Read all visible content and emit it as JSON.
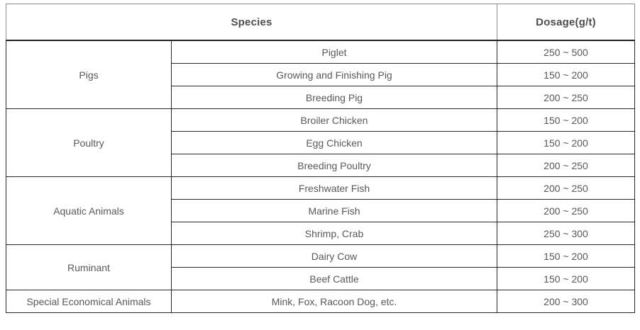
{
  "colors": {
    "background": "#ffffff",
    "header_text": "#4d4d4d",
    "body_text": "#595959",
    "header_border": "#8c8c8c",
    "body_border": "#262626"
  },
  "table": {
    "columns": [
      "Species",
      "Dosage(g/t)"
    ],
    "groups": [
      {
        "name": "Pigs",
        "rows": [
          {
            "species": "Piglet",
            "dosage": "250 ~ 500"
          },
          {
            "species": "Growing and Finishing Pig",
            "dosage": "150 ~ 200"
          },
          {
            "species": "Breeding Pig",
            "dosage": "200 ~ 250"
          }
        ]
      },
      {
        "name": "Poultry",
        "rows": [
          {
            "species": "Broiler Chicken",
            "dosage": "150 ~ 200"
          },
          {
            "species": "Egg Chicken",
            "dosage": "150 ~ 200"
          },
          {
            "species": "Breeding Poultry",
            "dosage": "200 ~ 250"
          }
        ]
      },
      {
        "name": "Aquatic Animals",
        "rows": [
          {
            "species": "Freshwater Fish",
            "dosage": "200 ~ 250"
          },
          {
            "species": "Marine Fish",
            "dosage": "200 ~ 250"
          },
          {
            "species": "Shrimp, Crab",
            "dosage": "250 ~ 300"
          }
        ]
      },
      {
        "name": "Ruminant",
        "rows": [
          {
            "species": "Dairy Cow",
            "dosage": "150 ~ 200"
          },
          {
            "species": "Beef Cattle",
            "dosage": "150 ~ 200"
          }
        ]
      },
      {
        "name": "Special Economical Animals",
        "rows": [
          {
            "species": "Mink, Fox, Racoon Dog, etc.",
            "dosage": "200 ~ 300"
          }
        ]
      }
    ]
  },
  "chart_data": {
    "type": "table",
    "title": "",
    "columns": [
      "Species (group)",
      "Species (detail)",
      "Dosage(g/t)"
    ],
    "rows": [
      [
        "Pigs",
        "Piglet",
        "250 ~ 500"
      ],
      [
        "Pigs",
        "Growing and Finishing Pig",
        "150 ~ 200"
      ],
      [
        "Pigs",
        "Breeding Pig",
        "200 ~ 250"
      ],
      [
        "Poultry",
        "Broiler Chicken",
        "150 ~ 200"
      ],
      [
        "Poultry",
        "Egg Chicken",
        "150 ~ 200"
      ],
      [
        "Poultry",
        "Breeding Poultry",
        "200 ~ 250"
      ],
      [
        "Aquatic Animals",
        "Freshwater Fish",
        "200 ~ 250"
      ],
      [
        "Aquatic Animals",
        "Marine Fish",
        "200 ~ 250"
      ],
      [
        "Aquatic Animals",
        "Shrimp, Crab",
        "250 ~ 300"
      ],
      [
        "Ruminant",
        "Dairy Cow",
        "150 ~ 200"
      ],
      [
        "Ruminant",
        "Beef Cattle",
        "150 ~ 200"
      ],
      [
        "Special Economical Animals",
        "Mink, Fox, Racoon Dog, etc.",
        "200 ~ 300"
      ]
    ]
  }
}
